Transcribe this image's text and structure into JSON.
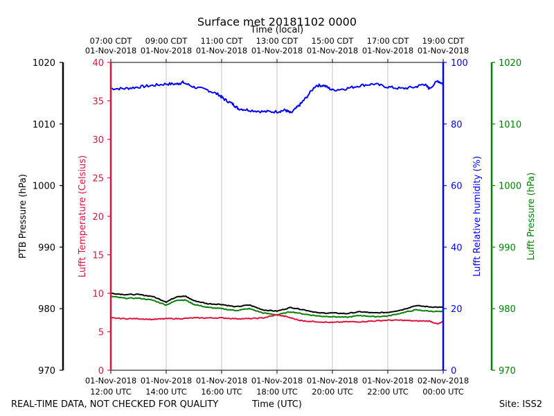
{
  "chart_data": {
    "type": "line",
    "title": "Surface met 20181102 0000",
    "top_axis_label": "Time (local)",
    "bottom_axis_label": "Time (UTC)",
    "footer_left": "REAL-TIME DATA, NOT CHECKED FOR QUALITY",
    "footer_right": "Site: ISS2",
    "x_range_hours": [
      12,
      24
    ],
    "bottom_ticks": [
      {
        "hour": 12,
        "date": "01-Nov-2018",
        "time": "12:00 UTC"
      },
      {
        "hour": 14,
        "date": "01-Nov-2018",
        "time": "14:00 UTC"
      },
      {
        "hour": 16,
        "date": "01-Nov-2018",
        "time": "16:00 UTC"
      },
      {
        "hour": 18,
        "date": "01-Nov-2018",
        "time": "18:00 UTC"
      },
      {
        "hour": 20,
        "date": "01-Nov-2018",
        "time": "20:00 UTC"
      },
      {
        "hour": 22,
        "date": "01-Nov-2018",
        "time": "22:00 UTC"
      },
      {
        "hour": 24,
        "date": "02-Nov-2018",
        "time": "00:00 UTC"
      }
    ],
    "top_ticks": [
      {
        "hour": 12,
        "time": "07:00 CDT",
        "date": "01-Nov-2018"
      },
      {
        "hour": 14,
        "time": "09:00 CDT",
        "date": "01-Nov-2018"
      },
      {
        "hour": 16,
        "time": "11:00 CDT",
        "date": "01-Nov-2018"
      },
      {
        "hour": 18,
        "time": "13:00 CDT",
        "date": "01-Nov-2018"
      },
      {
        "hour": 20,
        "time": "15:00 CDT",
        "date": "01-Nov-2018"
      },
      {
        "hour": 22,
        "time": "17:00 CDT",
        "date": "01-Nov-2018"
      },
      {
        "hour": 24,
        "time": "19:00 CDT",
        "date": "01-Nov-2018"
      }
    ],
    "axes": {
      "ptb_pressure": {
        "label": "PTB Pressure (hPa)",
        "range": [
          970,
          1020
        ],
        "ticks": [
          970,
          980,
          990,
          1000,
          1010,
          1020
        ],
        "color": "#000000"
      },
      "temperature": {
        "label": "Lufft Temperature (Celsius)",
        "range": [
          0,
          40
        ],
        "ticks": [
          0,
          5,
          10,
          15,
          20,
          25,
          30,
          35,
          40
        ],
        "color": "#dc143c"
      },
      "humidity": {
        "label": "Lufft Relative humidity (%)",
        "range": [
          0,
          100
        ],
        "ticks": [
          0,
          20,
          40,
          60,
          80,
          100
        ],
        "color": "#0000ff"
      },
      "lufft_pressure": {
        "label": "Lufft Pressure (hPa)",
        "range": [
          970,
          1020
        ],
        "ticks": [
          970,
          980,
          990,
          1000,
          1010,
          1020
        ],
        "color": "#008000"
      }
    },
    "series": [
      {
        "name": "Lufft Relative humidity",
        "axis": "humidity",
        "color": "#0000ff",
        "x": [
          12.0,
          12.5,
          13.0,
          13.5,
          14.0,
          14.4,
          14.6,
          15.0,
          15.5,
          15.9,
          16.1,
          16.4,
          16.6,
          17.0,
          17.5,
          18.0,
          18.3,
          18.5,
          18.8,
          19.0,
          19.4,
          19.7,
          20.0,
          20.5,
          21.0,
          21.5,
          22.0,
          22.5,
          23.0,
          23.3,
          23.5,
          23.8,
          24.0
        ],
        "values": [
          91.5,
          91.5,
          92,
          92.5,
          93,
          93,
          93.5,
          92,
          91,
          89.5,
          88,
          86.5,
          85,
          84.5,
          84,
          84,
          84.5,
          83.5,
          86,
          88,
          92.5,
          92.5,
          91,
          91.5,
          92.5,
          93,
          92,
          91.5,
          92,
          93,
          91.5,
          94,
          93
        ]
      },
      {
        "name": "PTB Pressure",
        "axis": "ptb_pressure",
        "color": "#000000",
        "x": [
          12.0,
          12.5,
          13.0,
          13.5,
          14.0,
          14.4,
          14.7,
          15.0,
          15.5,
          16.0,
          16.5,
          17.0,
          17.5,
          18.0,
          18.5,
          19.0,
          19.5,
          20.0,
          20.5,
          21.0,
          21.5,
          22.0,
          22.5,
          23.0,
          23.5,
          24.0
        ],
        "values": [
          982.5,
          982.3,
          982.3,
          982,
          981.1,
          982,
          982,
          981.3,
          980.8,
          980.7,
          980.3,
          980.6,
          979.8,
          979.6,
          980.2,
          979.8,
          979.3,
          979.3,
          979.2,
          979.5,
          979.3,
          979.4,
          979.8,
          980.5,
          980.3,
          980.2
        ]
      },
      {
        "name": "Lufft Pressure",
        "axis": "lufft_pressure",
        "color": "#008000",
        "x": [
          12.0,
          12.5,
          13.0,
          13.5,
          14.0,
          14.4,
          14.7,
          15.0,
          15.5,
          16.0,
          16.5,
          17.0,
          17.5,
          18.0,
          18.5,
          19.0,
          19.5,
          20.0,
          20.5,
          21.0,
          21.5,
          22.0,
          22.5,
          23.0,
          23.5,
          24.0
        ],
        "values": [
          982,
          981.7,
          981.7,
          981.4,
          980.6,
          981.4,
          981.4,
          980.7,
          980.2,
          980,
          979.7,
          980,
          979.3,
          979,
          979.5,
          979.1,
          978.8,
          978.7,
          978.6,
          978.9,
          978.7,
          978.8,
          979.3,
          979.8,
          979.6,
          979.5
        ]
      },
      {
        "name": "Lufft Temperature",
        "axis": "temperature",
        "color": "#dc143c",
        "x": [
          12.0,
          12.5,
          13.0,
          13.5,
          14.0,
          14.5,
          15.0,
          15.5,
          16.0,
          16.5,
          17.0,
          17.5,
          18.0,
          18.3,
          18.8,
          19.0,
          19.5,
          20.0,
          20.5,
          21.0,
          21.5,
          22.0,
          22.5,
          23.0,
          23.5,
          23.8,
          24.0
        ],
        "values": [
          6.8,
          6.7,
          6.7,
          6.6,
          6.7,
          6.7,
          6.8,
          6.8,
          6.8,
          6.7,
          6.7,
          6.8,
          7.2,
          7.0,
          6.5,
          6.4,
          6.3,
          6.2,
          6.3,
          6.3,
          6.4,
          6.5,
          6.5,
          6.4,
          6.4,
          6.0,
          6.3
        ]
      }
    ]
  }
}
